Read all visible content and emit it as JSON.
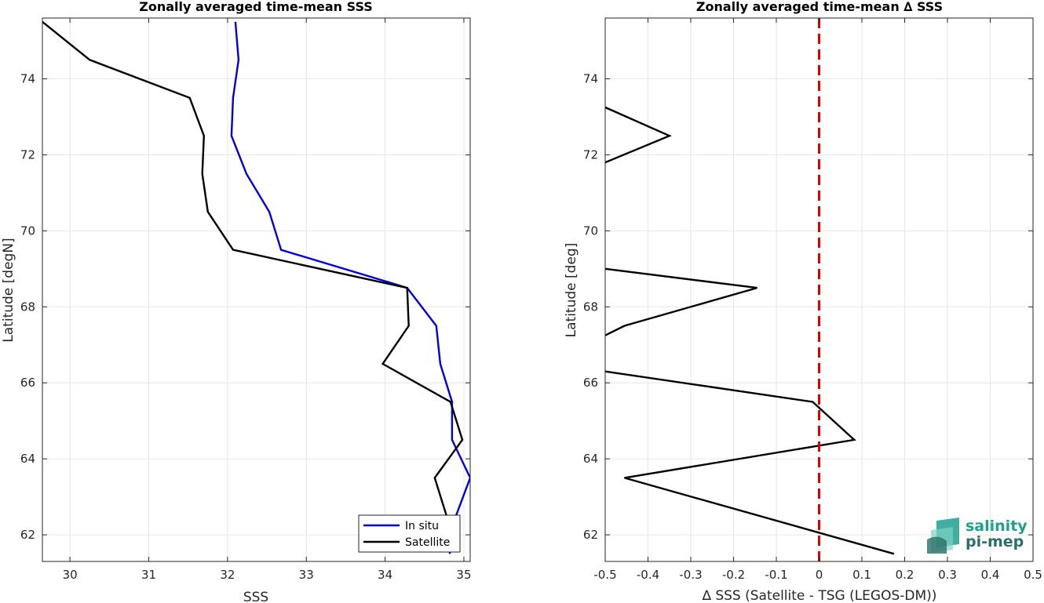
{
  "chart_data": [
    {
      "type": "line",
      "title": "Zonally averaged time-mean SSS",
      "xlabel": "SSS",
      "ylabel": "Latitude [degN]",
      "xlim": [
        29.65,
        35.08
      ],
      "ylim": [
        61.3,
        75.6
      ],
      "xticks": [
        30,
        31,
        32,
        33,
        34,
        35
      ],
      "yticks": [
        62,
        64,
        66,
        68,
        70,
        72,
        74
      ],
      "grid": true,
      "legend_position": "bottom-right",
      "series": [
        {
          "name": "In situ",
          "color": "#0000e6",
          "points": [
            [
              32.1,
              75.5
            ],
            [
              32.14,
              74.5
            ],
            [
              32.07,
              73.5
            ],
            [
              32.05,
              72.5
            ],
            [
              32.24,
              71.5
            ],
            [
              32.53,
              70.5
            ],
            [
              32.68,
              69.5
            ],
            [
              34.28,
              68.5
            ],
            [
              34.65,
              67.5
            ],
            [
              34.7,
              66.5
            ],
            [
              34.85,
              65.5
            ],
            [
              34.85,
              64.5
            ],
            [
              35.08,
              63.5
            ],
            [
              34.9,
              62.5
            ],
            [
              34.82,
              61.5
            ]
          ]
        },
        {
          "name": "Satellite",
          "color": "#000000",
          "points": [
            [
              29.65,
              75.5
            ],
            [
              30.25,
              74.5
            ],
            [
              31.52,
              73.5
            ],
            [
              31.7,
              72.5
            ],
            [
              31.68,
              71.5
            ],
            [
              31.75,
              70.5
            ],
            [
              32.07,
              69.5
            ],
            [
              34.28,
              68.5
            ],
            [
              34.3,
              67.5
            ],
            [
              33.97,
              66.5
            ],
            [
              34.83,
              65.5
            ],
            [
              34.98,
              64.5
            ],
            [
              34.63,
              63.5
            ],
            [
              34.78,
              62.5
            ],
            [
              34.75,
              62.1
            ]
          ]
        }
      ]
    },
    {
      "type": "line",
      "title": "Zonally averaged time-mean ∆ SSS",
      "xlabel": "∆ SSS (Satellite - TSG (LEGOS-DM))",
      "ylabel": "Latitude [deg]",
      "xlim": [
        -0.5,
        0.5
      ],
      "ylim": [
        61.3,
        75.6
      ],
      "xticks": [
        -0.5,
        -0.4,
        -0.3,
        -0.2,
        -0.1,
        0,
        0.1,
        0.2,
        0.3,
        0.4,
        0.5
      ],
      "yticks": [
        62,
        64,
        66,
        68,
        70,
        72,
        74
      ],
      "grid": true,
      "reference_line": {
        "x": 0,
        "color": "#e00000",
        "style": "dashed"
      },
      "segments": [
        {
          "color": "#000000",
          "points": [
            [
              -0.5,
              73.25
            ],
            [
              -0.35,
              72.5
            ],
            [
              -0.5,
              71.8
            ]
          ]
        },
        {
          "color": "#000000",
          "points": [
            [
              -0.5,
              69.0
            ],
            [
              -0.145,
              68.5
            ],
            [
              -0.455,
              67.5
            ],
            [
              -0.5,
              67.25
            ]
          ]
        },
        {
          "color": "#000000",
          "points": [
            [
              -0.5,
              66.3
            ],
            [
              -0.015,
              65.5
            ],
            [
              0.082,
              64.5
            ],
            [
              -0.455,
              63.5
            ],
            [
              0.175,
              61.5
            ]
          ]
        }
      ]
    }
  ],
  "logo": {
    "line1": "salinity",
    "line2": "pi-mep",
    "colors": [
      "#1fa08f",
      "#2b6f6a",
      "#7fd3c2"
    ]
  }
}
